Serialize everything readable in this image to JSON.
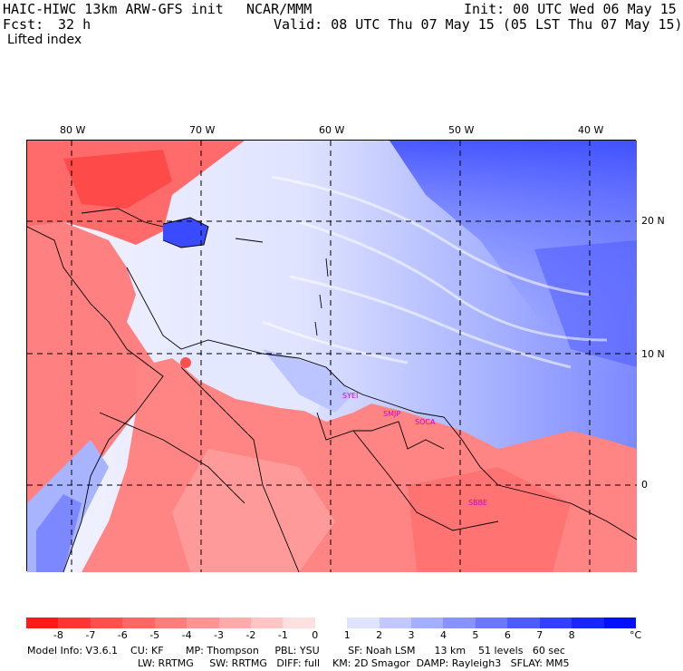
{
  "header": {
    "model_title": "HAIC-HIWC 13km ARW-GFS init",
    "org": "NCAR/MMM",
    "init": "Init: 00 UTC Wed 06 May 15",
    "fcst_label": "Fcst:",
    "fcst_value": "32 h",
    "valid": "Valid: 08 UTC Thu 07 May 15 (05 LST Thu 07 May 15)",
    "field": "Lifted index"
  },
  "map": {
    "lon_labels": [
      "80 W",
      "70 W",
      "60 W",
      "50 W",
      "40 W"
    ],
    "lat_labels": [
      "20 N",
      "10 N",
      "0"
    ],
    "stations": [
      "SYEI",
      "SMJP",
      "SOCA",
      "SBBE"
    ]
  },
  "colorbar": {
    "ticks": [
      "-8",
      "-7",
      "-6",
      "-5",
      "-4",
      "-3",
      "-2",
      "-1",
      "0",
      "1",
      "2",
      "3",
      "4",
      "5",
      "6",
      "7",
      "8"
    ],
    "unit": "°C",
    "colors": [
      "#ff1a1a",
      "#ff3535",
      "#ff4f4f",
      "#ff6666",
      "#ff7d7d",
      "#ff9494",
      "#ffabab",
      "#ffc4c4",
      "#ffe0e0",
      "#ffffff",
      "#dfe3ff",
      "#c2c9ff",
      "#a5afff",
      "#8893ff",
      "#6b77ff",
      "#4e5bff",
      "#3340ff",
      "#1a26ff",
      "#0010ff"
    ]
  },
  "model_info": {
    "line1": "Model Info: V3.6.1    CU: KF       MP: Thompson     PBL: YSU         SF: Noah LSM      13 km    51 levels   60 sec",
    "line2": "LW: RRTMG     SW: RRTMG   DIFF: full    KM: 2D Smagor  DAMP: Rayleigh3   SFLAY: MM5"
  }
}
